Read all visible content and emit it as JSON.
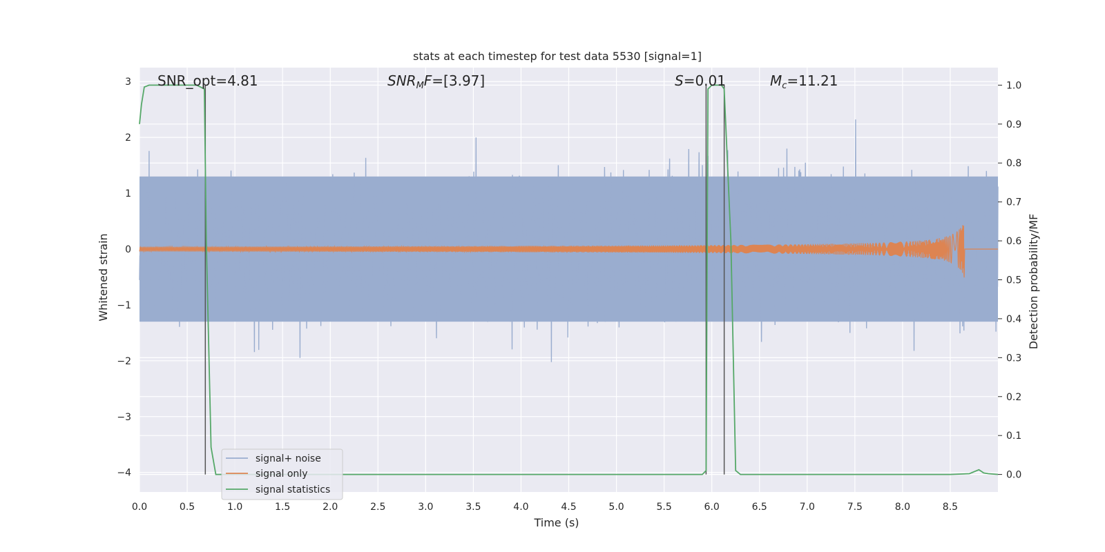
{
  "colors": {
    "background": "#eaeaf2",
    "grid": "#ffffff",
    "noise": "#9aadcf",
    "signal": "#dd8452",
    "stats": "#55a868",
    "marker": "#555555"
  },
  "chart_data": {
    "type": "line",
    "title": "stats at each timestep for test data 5530 [signal=1]",
    "xlabel": "Time (s)",
    "ylabel": "Whitened strain",
    "y2label": "Detection probability/MF",
    "xlim": [
      0.0,
      9.0
    ],
    "ylim": [
      -4.35,
      3.25
    ],
    "y2lim": [
      -0.045,
      1.045
    ],
    "xticks": [
      0.0,
      0.5,
      1.0,
      1.5,
      2.0,
      2.5,
      3.0,
      3.5,
      4.0,
      4.5,
      5.0,
      5.5,
      6.0,
      6.5,
      7.0,
      7.5,
      8.0,
      8.5
    ],
    "xtick_labels": [
      "0.0",
      "0.5",
      "1.0",
      "1.5",
      "2.0",
      "2.5",
      "3.0",
      "3.5",
      "4.0",
      "4.5",
      "5.0",
      "5.5",
      "6.0",
      "6.5",
      "7.0",
      "7.5",
      "8.0",
      "8.5"
    ],
    "yticks": [
      -4,
      -3,
      -2,
      -1,
      0,
      1,
      2,
      3
    ],
    "ytick_labels": [
      "−4",
      "−3",
      "−2",
      "−1",
      "0",
      "1",
      "2",
      "3"
    ],
    "y2ticks": [
      0.0,
      0.1,
      0.2,
      0.3,
      0.4,
      0.5,
      0.6,
      0.7,
      0.8,
      0.9,
      1.0
    ],
    "y2tick_labels": [
      "0.0",
      "0.1",
      "0.2",
      "0.3",
      "0.4",
      "0.5",
      "0.6",
      "0.7",
      "0.8",
      "0.9",
      "1.0"
    ],
    "grid": true,
    "legend_position": "lower-left",
    "annotations": {
      "snr_opt": "SNR_opt=4.81",
      "snr_mf_var": "SNR",
      "snr_mf_sub": "M",
      "snr_mf_tail": "F",
      "snr_mf_value": "=[3.97]",
      "s_var": "S",
      "s_value": "=0.01",
      "mc_var": "M",
      "mc_sub": "c",
      "mc_value": "=11.21"
    },
    "series": [
      {
        "name": "signal+ noise",
        "axis": "left",
        "description_range": [
          -4.0,
          2.9
        ],
        "envelope": 1.3
      },
      {
        "name": "signal only",
        "axis": "left",
        "merger_time": 8.65,
        "peak_amplitude": 0.65
      },
      {
        "name": "signal statistics",
        "axis": "right",
        "x": [
          0.0,
          0.02,
          0.05,
          0.1,
          0.2,
          0.3,
          0.4,
          0.5,
          0.6,
          0.68,
          0.7,
          0.75,
          0.8,
          1.0,
          2.0,
          3.0,
          4.0,
          5.0,
          5.5,
          5.9,
          5.94,
          5.96,
          6.0,
          6.1,
          6.13,
          6.2,
          6.25,
          6.3,
          6.5,
          7.0,
          7.5,
          8.0,
          8.5,
          8.7,
          8.8,
          8.85,
          8.9,
          9.0
        ],
        "y": [
          0.9,
          0.95,
          0.995,
          1.0,
          1.0,
          1.0,
          1.0,
          1.0,
          1.0,
          0.99,
          0.6,
          0.07,
          0.0,
          0.0,
          0.0,
          0.0,
          0.0,
          0.0,
          0.0,
          0.0,
          0.01,
          0.99,
          1.0,
          1.0,
          0.99,
          0.6,
          0.01,
          0.0,
          0.0,
          0.0,
          0.0,
          0.0,
          0.0,
          0.002,
          0.012,
          0.004,
          0.002,
          0.0
        ]
      }
    ],
    "vertical_markers": [
      0.69,
      5.94,
      6.13
    ]
  }
}
